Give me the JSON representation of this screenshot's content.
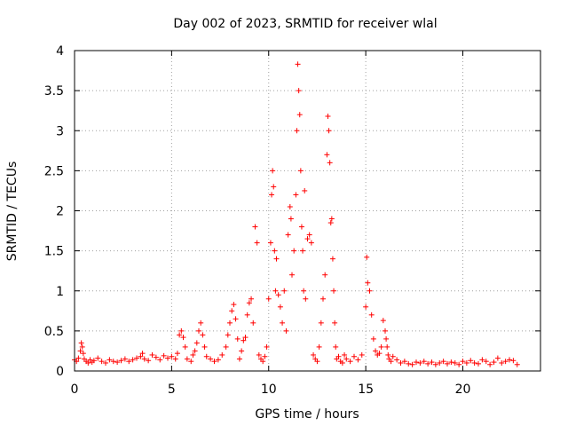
{
  "chart_data": {
    "type": "scatter",
    "title": "Day 002 of 2023, SRMTID for receiver wlal",
    "xlabel": "GPS time / hours",
    "ylabel": "SRMTID / TECUs",
    "xlim": [
      0,
      24
    ],
    "ylim": [
      0,
      4
    ],
    "x_ticks": [
      0,
      5,
      10,
      15,
      20
    ],
    "x_tick_labels": [
      "0",
      "5",
      "10",
      "15",
      "20"
    ],
    "y_ticks": [
      0,
      0.5,
      1,
      1.5,
      2,
      2.5,
      3,
      3.5,
      4
    ],
    "y_tick_labels": [
      "0",
      "0.5",
      "1",
      "1.5",
      "2",
      "2.5",
      "3",
      "3.5",
      "4"
    ],
    "grid": true,
    "marker": "+",
    "color": "#ff0000",
    "series": [
      {
        "name": "wlal",
        "x": [
          0.0,
          0.1,
          0.2,
          0.3,
          0.35,
          0.4,
          0.45,
          0.5,
          0.6,
          0.7,
          0.8,
          0.9,
          1.0,
          1.2,
          1.4,
          1.6,
          1.8,
          2.0,
          2.2,
          2.4,
          2.6,
          2.8,
          3.0,
          3.2,
          3.4,
          3.5,
          3.6,
          3.8,
          4.0,
          4.2,
          4.4,
          4.6,
          4.8,
          5.0,
          5.2,
          5.3,
          5.4,
          5.5,
          5.6,
          5.7,
          5.8,
          6.0,
          6.1,
          6.2,
          6.3,
          6.4,
          6.5,
          6.6,
          6.7,
          6.8,
          7.0,
          7.2,
          7.4,
          7.6,
          7.8,
          7.9,
          8.0,
          8.1,
          8.2,
          8.3,
          8.4,
          8.5,
          8.6,
          8.7,
          8.8,
          8.9,
          9.0,
          9.1,
          9.2,
          9.3,
          9.4,
          9.5,
          9.6,
          9.7,
          9.8,
          9.9,
          10.0,
          10.1,
          10.15,
          10.2,
          10.25,
          10.3,
          10.35,
          10.4,
          10.5,
          10.6,
          10.7,
          10.8,
          10.9,
          11.0,
          11.1,
          11.15,
          11.2,
          11.3,
          11.4,
          11.45,
          11.5,
          11.55,
          11.6,
          11.65,
          11.7,
          11.75,
          11.8,
          11.85,
          11.9,
          12.0,
          12.1,
          12.2,
          12.3,
          12.4,
          12.5,
          12.6,
          12.7,
          12.8,
          12.9,
          13.0,
          13.05,
          13.1,
          13.15,
          13.2,
          13.25,
          13.3,
          13.35,
          13.4,
          13.45,
          13.5,
          13.6,
          13.7,
          13.8,
          13.9,
          14.0,
          14.2,
          14.4,
          14.6,
          14.8,
          15.0,
          15.05,
          15.1,
          15.2,
          15.3,
          15.4,
          15.5,
          15.6,
          15.7,
          15.8,
          15.9,
          16.0,
          16.05,
          16.1,
          16.15,
          16.2,
          16.3,
          16.4,
          16.6,
          16.8,
          17.0,
          17.2,
          17.4,
          17.6,
          17.8,
          18.0,
          18.2,
          18.4,
          18.6,
          18.8,
          19.0,
          19.2,
          19.4,
          19.6,
          19.8,
          20.0,
          20.2,
          20.4,
          20.6,
          20.8,
          21.0,
          21.2,
          21.4,
          21.6,
          21.8,
          22.0,
          22.2,
          22.4,
          22.6,
          22.8
        ],
        "y": [
          0.14,
          0.12,
          0.16,
          0.25,
          0.35,
          0.3,
          0.22,
          0.15,
          0.12,
          0.1,
          0.14,
          0.11,
          0.13,
          0.16,
          0.12,
          0.1,
          0.14,
          0.12,
          0.11,
          0.13,
          0.15,
          0.12,
          0.14,
          0.16,
          0.18,
          0.22,
          0.15,
          0.13,
          0.2,
          0.17,
          0.14,
          0.19,
          0.16,
          0.18,
          0.15,
          0.22,
          0.45,
          0.5,
          0.42,
          0.3,
          0.15,
          0.12,
          0.2,
          0.25,
          0.35,
          0.5,
          0.6,
          0.45,
          0.3,
          0.18,
          0.15,
          0.12,
          0.14,
          0.2,
          0.3,
          0.45,
          0.6,
          0.75,
          0.83,
          0.65,
          0.4,
          0.15,
          0.25,
          0.38,
          0.42,
          0.7,
          0.85,
          0.9,
          0.6,
          1.8,
          1.6,
          0.2,
          0.15,
          0.12,
          0.18,
          0.3,
          0.9,
          1.6,
          2.2,
          2.5,
          2.3,
          1.5,
          1.0,
          1.4,
          0.95,
          0.8,
          0.6,
          1.0,
          0.5,
          1.7,
          2.05,
          1.9,
          1.2,
          1.5,
          2.2,
          3.0,
          3.83,
          3.5,
          3.2,
          2.5,
          1.8,
          1.5,
          1.0,
          2.25,
          0.9,
          1.65,
          1.7,
          1.6,
          0.2,
          0.15,
          0.12,
          0.3,
          0.6,
          0.9,
          1.2,
          2.7,
          3.18,
          3.0,
          2.6,
          1.85,
          1.9,
          1.4,
          1.0,
          0.6,
          0.3,
          0.15,
          0.18,
          0.12,
          0.1,
          0.2,
          0.15,
          0.12,
          0.18,
          0.14,
          0.2,
          0.8,
          1.42,
          1.1,
          1.0,
          0.7,
          0.4,
          0.25,
          0.2,
          0.22,
          0.3,
          0.63,
          0.5,
          0.4,
          0.3,
          0.2,
          0.15,
          0.12,
          0.18,
          0.14,
          0.1,
          0.12,
          0.09,
          0.08,
          0.11,
          0.1,
          0.12,
          0.09,
          0.11,
          0.08,
          0.1,
          0.12,
          0.09,
          0.11,
          0.1,
          0.08,
          0.12,
          0.1,
          0.13,
          0.1,
          0.09,
          0.14,
          0.12,
          0.08,
          0.11,
          0.16,
          0.1,
          0.12,
          0.14,
          0.13,
          0.08
        ]
      }
    ]
  }
}
